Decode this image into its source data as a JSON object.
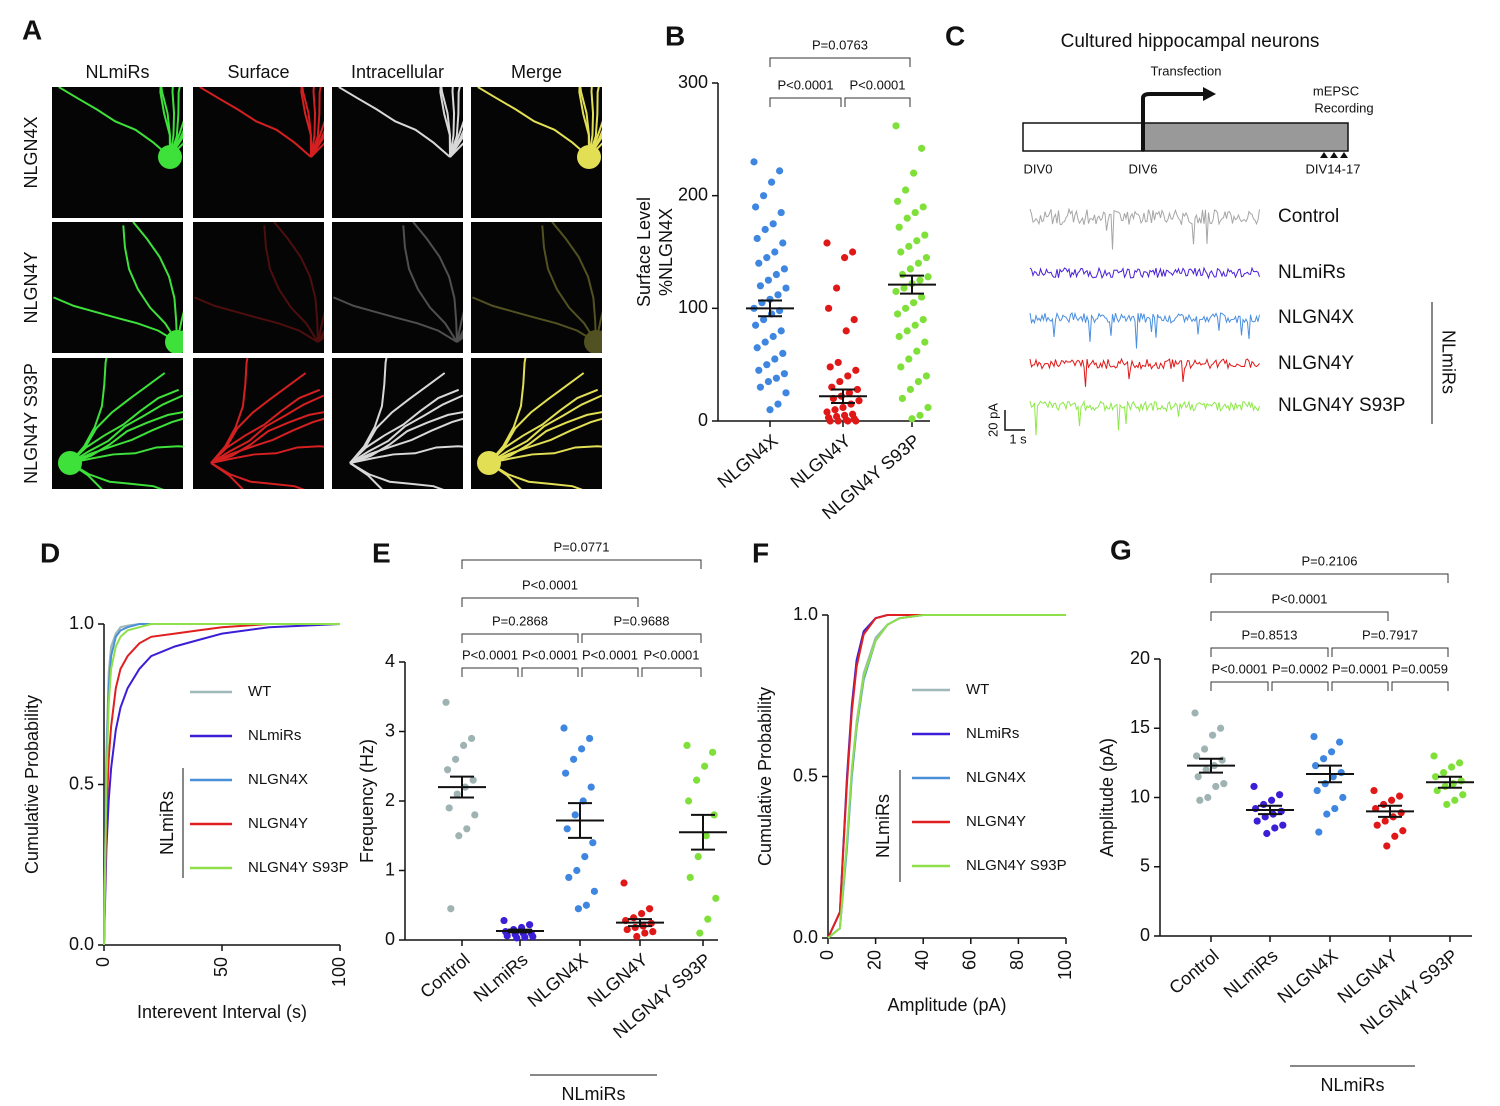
{
  "panel_a": {
    "panel": "A",
    "columns": [
      "NLmiRs",
      "Surface",
      "Intracellular",
      "Merge"
    ],
    "rows": [
      "NLGN4X",
      "NLGN4Y",
      "NLGN4Y S93P"
    ],
    "colors": [
      "#3ee03a",
      "#d42020",
      "#d8d8d8",
      "#e2df55"
    ]
  },
  "panel_c": {
    "panel": "C",
    "title": "Cultured hippocampal neurons",
    "transfection": "Transfection",
    "recording": [
      "mEPSC",
      "Recording"
    ],
    "timeline": [
      "DIV0",
      "DIV6",
      "DIV14-17"
    ],
    "traces": [
      {
        "name": "Control",
        "color": "#a6a6a6"
      },
      {
        "name": "NLmiRs",
        "color": "#4a20d8"
      },
      {
        "name": "NLGN4X",
        "color": "#4a8fe0"
      },
      {
        "name": "NLGN4Y",
        "color": "#e01818"
      },
      {
        "name": "NLGN4Y S93P",
        "color": "#8ee84a"
      }
    ],
    "group_label": "NLmiRs",
    "scale_y": "20 pA",
    "scale_x": "1 s"
  },
  "chart_data": [
    {
      "panel": "B",
      "type": "strip",
      "ylabel": [
        "Surface Level",
        "%NLGN4X"
      ],
      "categories": [
        "NLGN4X",
        "NLGN4Y",
        "NLGN4Y S93P"
      ],
      "ylim": [
        0,
        300
      ],
      "yticks": [
        0,
        100,
        200,
        300
      ],
      "comparisons": [
        "P=0.0763",
        "P<0.0001",
        "P<0.0001"
      ],
      "series": [
        {
          "color": "#3f86e0",
          "mean": 100,
          "sem": 7,
          "values": [
            230,
            222,
            212,
            200,
            190,
            185,
            175,
            170,
            162,
            158,
            150,
            145,
            140,
            135,
            130,
            125,
            120,
            118,
            112,
            108,
            105,
            100,
            98,
            95,
            90,
            85,
            80,
            75,
            70,
            65,
            60,
            55,
            50,
            45,
            42,
            38,
            35,
            30,
            25,
            15,
            10
          ]
        },
        {
          "color": "#e01818",
          "mean": 22,
          "sem": 6,
          "values": [
            158,
            150,
            145,
            118,
            100,
            90,
            80,
            52,
            48,
            45,
            40,
            35,
            30,
            28,
            25,
            22,
            20,
            18,
            15,
            12,
            10,
            8,
            6,
            5,
            4,
            3,
            2,
            1,
            0,
            0,
            0,
            0
          ]
        },
        {
          "color": "#7fe03a",
          "mean": 121,
          "sem": 8,
          "values": [
            262,
            242,
            220,
            205,
            195,
            190,
            185,
            180,
            172,
            165,
            160,
            155,
            150,
            145,
            140,
            135,
            130,
            128,
            125,
            122,
            118,
            115,
            110,
            105,
            100,
            95,
            90,
            85,
            80,
            75,
            70,
            62,
            55,
            48,
            40,
            35,
            28,
            20,
            12,
            5,
            2
          ]
        }
      ]
    },
    {
      "panel": "D",
      "type": "line",
      "xlabel": "Interevent Interval (s)",
      "ylabel": "Cumulative Probability",
      "xlim": [
        0,
        100
      ],
      "xticks": [
        0,
        50,
        100
      ],
      "ylim": [
        0,
        1
      ],
      "yticks": [
        {
          "value": 0,
          "label": "0.0"
        },
        0.5,
        {
          "value": 1,
          "label": "1.0"
        }
      ],
      "legend_group_label": "NLmiRs",
      "x": [
        0,
        1,
        2,
        3,
        5,
        7,
        10,
        15,
        20,
        30,
        40,
        50,
        70,
        100
      ],
      "series": [
        {
          "name": "WT",
          "color": "#9fb8b8",
          "values": [
            0,
            0.6,
            0.85,
            0.93,
            0.97,
            0.99,
            0.995,
            1,
            1,
            1,
            1,
            1,
            1,
            1
          ]
        },
        {
          "name": "NLmiRs",
          "color": "#3a1fd6",
          "values": [
            0,
            0.3,
            0.45,
            0.55,
            0.67,
            0.74,
            0.8,
            0.86,
            0.9,
            0.93,
            0.95,
            0.97,
            0.99,
            1
          ]
        },
        {
          "name": "NLGN4X",
          "color": "#4a8fd9",
          "values": [
            0,
            0.55,
            0.8,
            0.9,
            0.96,
            0.98,
            0.99,
            1,
            1,
            1,
            1,
            1,
            1,
            1
          ]
        },
        {
          "name": "NLGN4Y",
          "color": "#e02020",
          "values": [
            0,
            0.4,
            0.58,
            0.68,
            0.8,
            0.86,
            0.9,
            0.94,
            0.96,
            0.97,
            0.98,
            0.99,
            1,
            1
          ]
        },
        {
          "name": "NLGN4Y S93P",
          "color": "#8ee04a",
          "values": [
            0,
            0.5,
            0.75,
            0.86,
            0.93,
            0.96,
            0.98,
            0.99,
            1,
            1,
            1,
            1,
            1,
            1
          ]
        }
      ]
    },
    {
      "panel": "E",
      "type": "strip",
      "ylabel": [
        "Frequency (Hz)"
      ],
      "categories": [
        "Control",
        "NLmiRs",
        "NLGN4X",
        "NLGN4Y",
        "NLGN4Y S93P"
      ],
      "ylim": [
        0,
        4
      ],
      "yticks": [
        0,
        1,
        2,
        3,
        4
      ],
      "group_label": "NLmiRs",
      "comparisons": [
        "P=0.0771",
        "P<0.0001",
        "P=0.2868",
        "P=0.9688",
        "P<0.0001",
        "P<0.0001",
        "P<0.0001",
        "P<0.0001"
      ],
      "series": [
        {
          "color": "#9fb3b3",
          "mean": 2.2,
          "sem": 0.15,
          "values": [
            3.42,
            2.9,
            2.8,
            2.6,
            2.45,
            2.3,
            2.2,
            2.1,
            1.9,
            1.8,
            1.6,
            1.5,
            0.45
          ]
        },
        {
          "color": "#3a1fd6",
          "mean": 0.13,
          "sem": 0.02,
          "values": [
            0.28,
            0.22,
            0.18,
            0.15,
            0.12,
            0.1,
            0.1,
            0.08,
            0.06,
            0.05,
            0.04,
            0.03
          ]
        },
        {
          "color": "#3f86e0",
          "mean": 1.72,
          "sem": 0.25,
          "values": [
            3.05,
            2.9,
            2.75,
            2.6,
            2.4,
            2.2,
            2.0,
            1.8,
            1.6,
            1.4,
            1.2,
            1.0,
            0.9,
            0.7,
            0.5,
            0.45
          ]
        },
        {
          "color": "#e01818",
          "mean": 0.25,
          "sem": 0.05,
          "values": [
            0.82,
            0.45,
            0.38,
            0.32,
            0.28,
            0.24,
            0.2,
            0.18,
            0.15,
            0.12,
            0.1,
            0.05
          ]
        },
        {
          "color": "#7fe03a",
          "mean": 1.55,
          "sem": 0.25,
          "values": [
            2.8,
            2.7,
            2.5,
            2.3,
            2.0,
            1.8,
            1.5,
            1.2,
            0.9,
            0.6,
            0.3,
            0.1
          ]
        }
      ]
    },
    {
      "panel": "F",
      "type": "line",
      "xlabel": "Amplitude (pA)",
      "ylabel": "Cumulative Probability",
      "xlim": [
        0,
        100
      ],
      "xticks": [
        0,
        20,
        40,
        60,
        80,
        100
      ],
      "ylim": [
        0,
        1
      ],
      "yticks": [
        {
          "value": 0,
          "label": "0.0"
        },
        0.5,
        {
          "value": 1,
          "label": "1.0"
        }
      ],
      "legend_group_label": "NLmiRs",
      "x": [
        0,
        5,
        8,
        10,
        12,
        15,
        20,
        25,
        30,
        40,
        50,
        100
      ],
      "series": [
        {
          "name": "WT",
          "color": "#9fb8b8",
          "values": [
            0,
            0.03,
            0.3,
            0.52,
            0.67,
            0.82,
            0.93,
            0.97,
            0.99,
            1,
            1,
            1
          ]
        },
        {
          "name": "NLmiRs",
          "color": "#3a1fd6",
          "values": [
            0,
            0.08,
            0.5,
            0.72,
            0.86,
            0.95,
            0.99,
            1,
            1,
            1,
            1,
            1
          ]
        },
        {
          "name": "NLGN4X",
          "color": "#4a8fd9",
          "values": [
            0,
            0.03,
            0.28,
            0.5,
            0.65,
            0.8,
            0.92,
            0.97,
            0.99,
            1,
            1,
            1
          ]
        },
        {
          "name": "NLGN4Y",
          "color": "#e02020",
          "values": [
            0,
            0.08,
            0.48,
            0.7,
            0.84,
            0.94,
            0.99,
            1,
            1,
            1,
            1,
            1
          ]
        },
        {
          "name": "NLGN4Y S93P",
          "color": "#8ee04a",
          "values": [
            0,
            0.03,
            0.3,
            0.52,
            0.66,
            0.81,
            0.92,
            0.97,
            0.99,
            1,
            1,
            1
          ]
        }
      ]
    },
    {
      "panel": "G",
      "type": "strip",
      "ylabel": [
        "Amplitude (pA)"
      ],
      "categories": [
        "Control",
        "NLmiRs",
        "NLGN4X",
        "NLGN4Y",
        "NLGN4Y S93P"
      ],
      "ylim": [
        0,
        20
      ],
      "yticks": [
        0,
        5,
        10,
        15,
        20
      ],
      "group_label": "NLmiRs",
      "comparisons": [
        "P=0.2106",
        "P<0.0001",
        "P=0.8513",
        "P=0.7917",
        "P<0.0001",
        "P=0.0002",
        "P=0.0001",
        "P=0.0059"
      ],
      "series": [
        {
          "color": "#9fb3b3",
          "mean": 12.3,
          "sem": 0.5,
          "values": [
            16.1,
            15,
            14.5,
            13.5,
            13,
            12.7,
            12.3,
            12,
            11.5,
            11,
            10.8,
            10,
            9.8
          ]
        },
        {
          "color": "#3a1fd6",
          "mean": 9.1,
          "sem": 0.3,
          "values": [
            10.8,
            10.2,
            9.8,
            9.5,
            9.2,
            9,
            8.8,
            8.6,
            8.3,
            8,
            7.8,
            7.4
          ]
        },
        {
          "color": "#3f86e0",
          "mean": 11.7,
          "sem": 0.6,
          "values": [
            14.4,
            14,
            13.3,
            12.8,
            12.3,
            11.8,
            11.5,
            11,
            10.5,
            10,
            9.2,
            8.8,
            7.5
          ]
        },
        {
          "color": "#e01818",
          "mean": 9.0,
          "sem": 0.4,
          "values": [
            10.5,
            10.1,
            9.8,
            9.5,
            9.2,
            8.9,
            8.6,
            8.3,
            8,
            7.6,
            7.2,
            6.5
          ]
        },
        {
          "color": "#7fe03a",
          "mean": 11.1,
          "sem": 0.4,
          "values": [
            13,
            12.5,
            12.2,
            11.8,
            11.5,
            11.2,
            11,
            10.8,
            10.5,
            10.2,
            9.8,
            9.5
          ]
        }
      ]
    }
  ]
}
